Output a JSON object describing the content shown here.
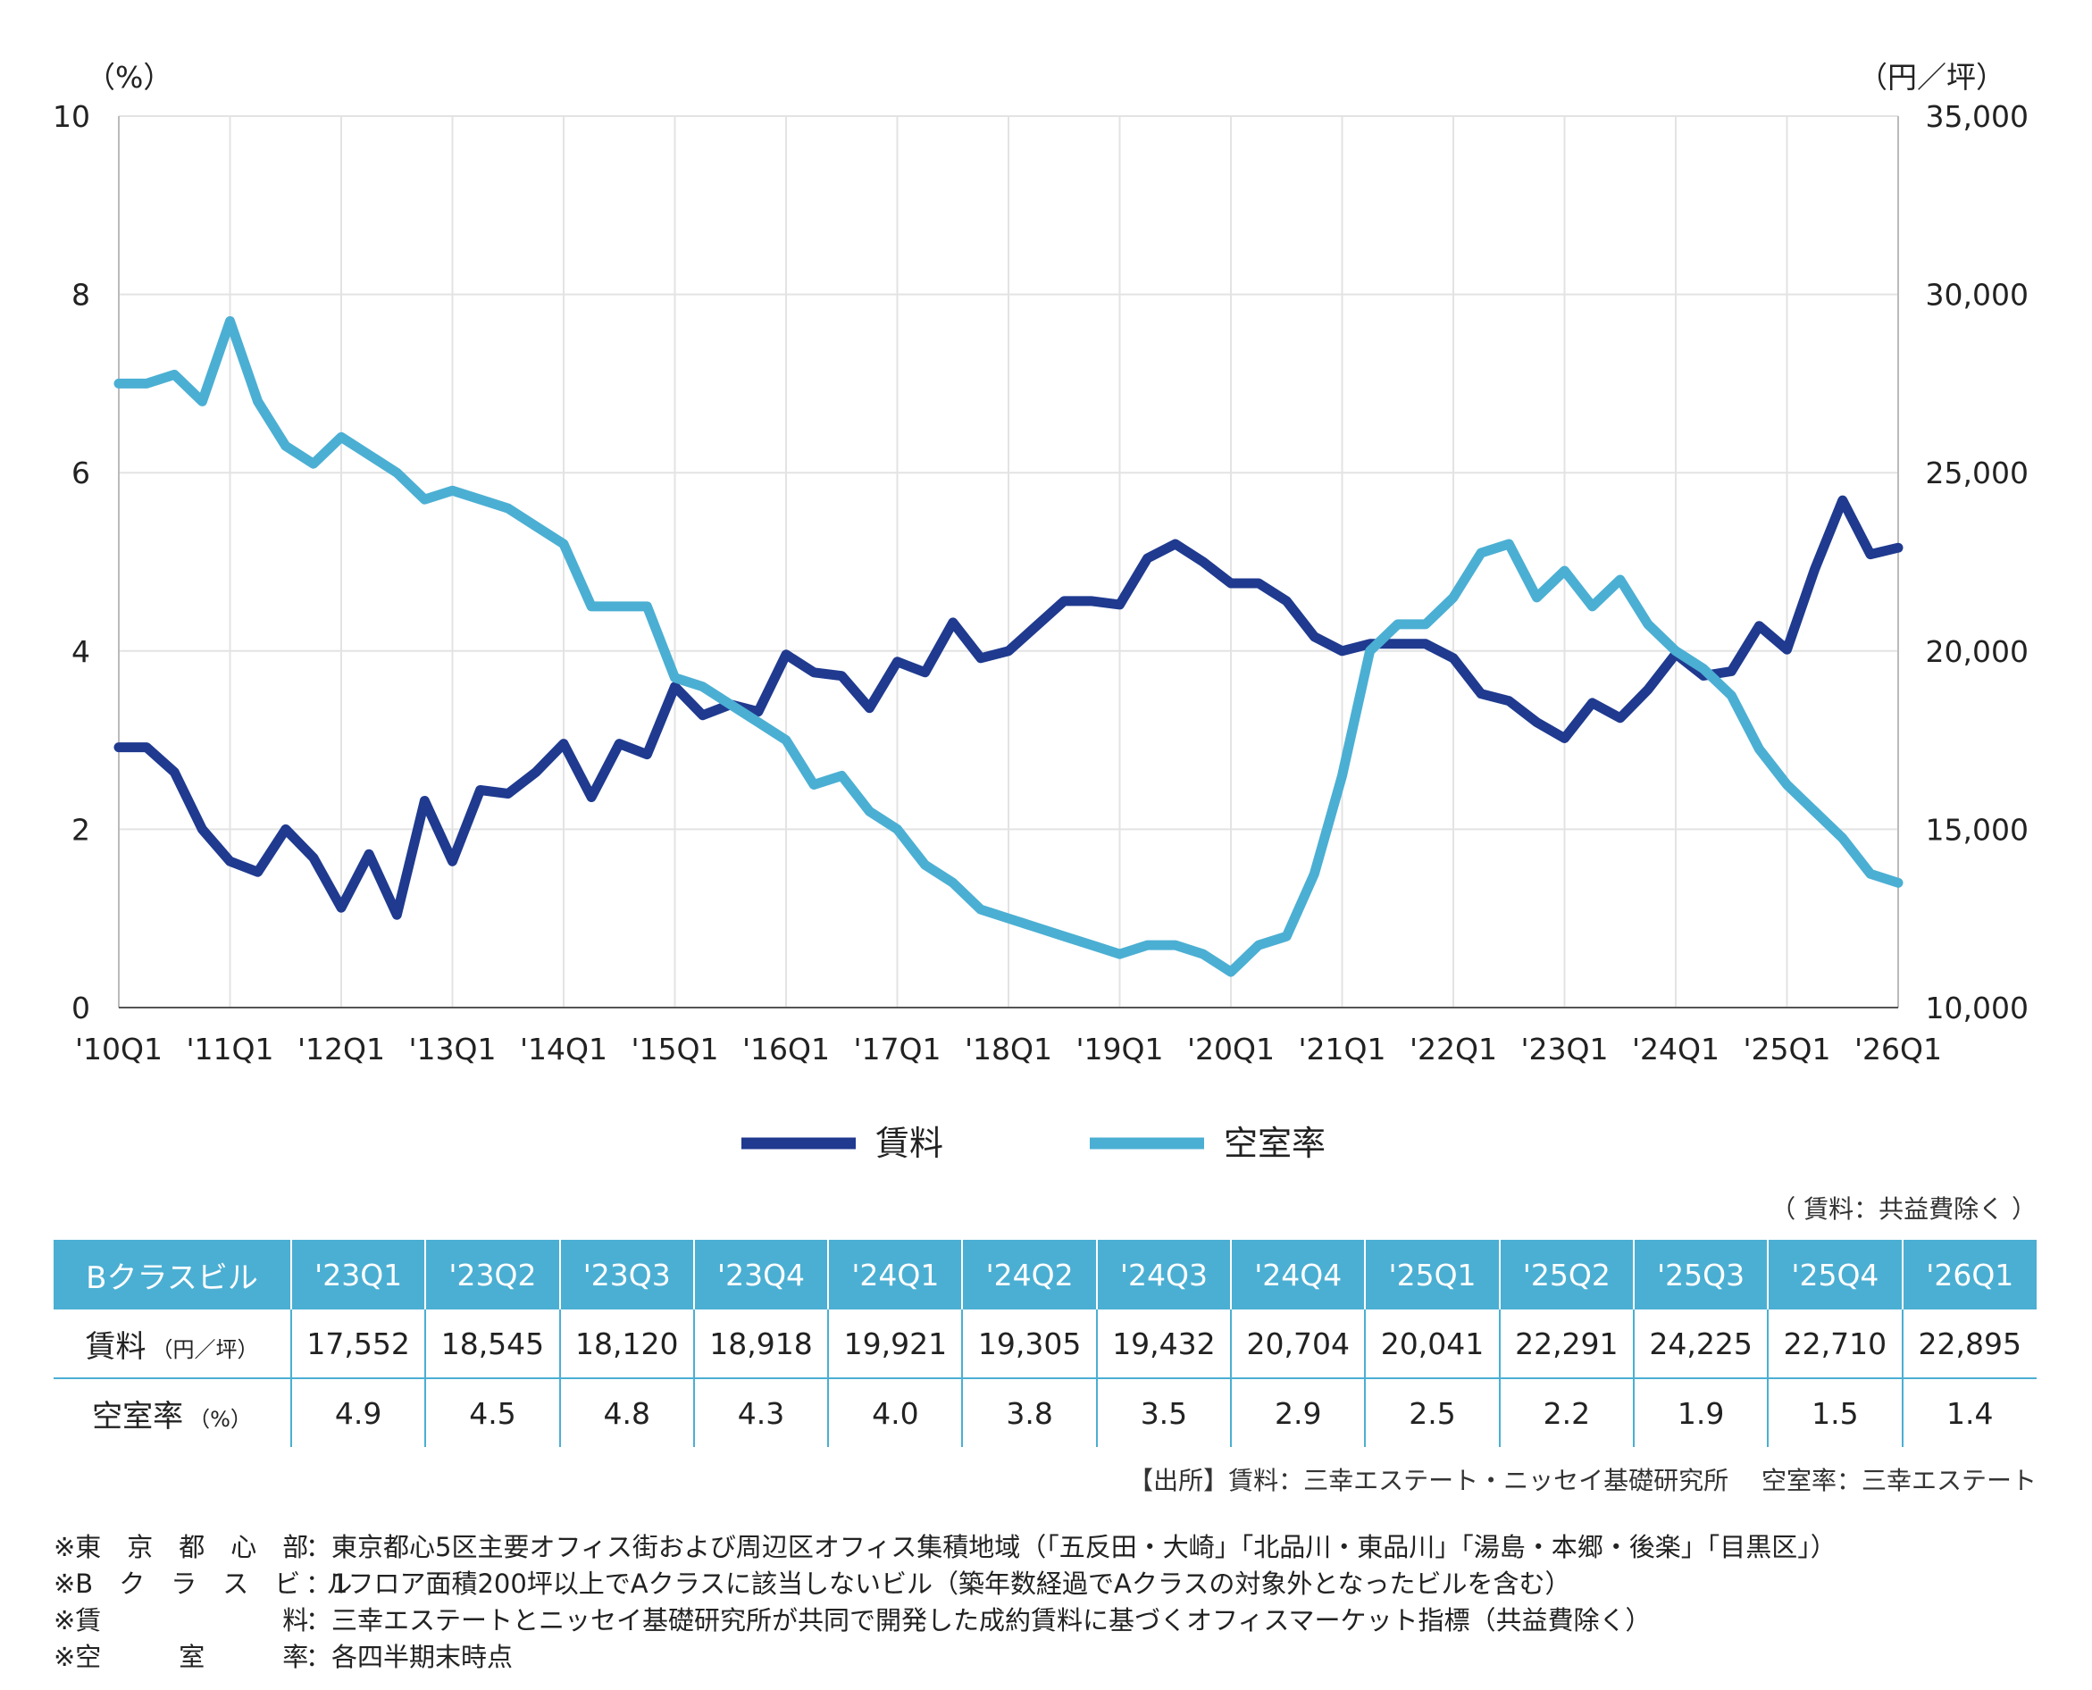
{
  "chart_data": {
    "type": "line",
    "left_axis_unit": "（%）",
    "right_axis_unit": "（円／坪）",
    "left_ylim": [
      0,
      10
    ],
    "right_ylim": [
      10000,
      35000
    ],
    "left_ticks": [
      "0",
      "2",
      "4",
      "6",
      "8",
      "10"
    ],
    "right_ticks": [
      "10,000",
      "15,000",
      "20,000",
      "25,000",
      "30,000",
      "35,000"
    ],
    "x_tick_labels": [
      "'10Q1",
      "'11Q1",
      "'12Q1",
      "'13Q1",
      "'14Q1",
      "'15Q1",
      "'16Q1",
      "'17Q1",
      "'18Q1",
      "'19Q1",
      "'20Q1",
      "'21Q1",
      "'22Q1",
      "'23Q1",
      "'24Q1",
      "'25Q1",
      "'26Q1"
    ],
    "series": [
      {
        "name": "賃料",
        "axis": "right",
        "color": "#1f3a8f",
        "values": [
          17300,
          17300,
          16600,
          15000,
          14100,
          13800,
          15000,
          14200,
          12800,
          14300,
          12600,
          15800,
          14100,
          16100,
          16000,
          16600,
          17400,
          15900,
          17400,
          17100,
          19000,
          18200,
          18500,
          18300,
          19900,
          19400,
          19300,
          18400,
          19700,
          19400,
          20800,
          19800,
          20000,
          20700,
          21400,
          21400,
          21300,
          22600,
          23000,
          22500,
          21900,
          21900,
          21400,
          20400,
          20000,
          20200,
          20200,
          20200,
          19800,
          18800,
          18600,
          18000,
          17552,
          18545,
          18120,
          18918,
          19921,
          19305,
          19432,
          20704,
          20041,
          22291,
          24225,
          22710,
          22895
        ]
      },
      {
        "name": "空室率",
        "axis": "left",
        "color": "#4bafd3",
        "values": [
          7.0,
          7.0,
          7.1,
          6.8,
          7.7,
          6.8,
          6.3,
          6.1,
          6.4,
          6.2,
          6.0,
          5.7,
          5.8,
          5.7,
          5.6,
          5.4,
          5.2,
          4.5,
          4.5,
          4.5,
          3.7,
          3.6,
          3.4,
          3.2,
          3.0,
          2.5,
          2.6,
          2.2,
          2.0,
          1.6,
          1.4,
          1.1,
          1.0,
          0.9,
          0.8,
          0.7,
          0.6,
          0.7,
          0.7,
          0.6,
          0.4,
          0.7,
          0.8,
          1.5,
          2.6,
          4.0,
          4.3,
          4.3,
          4.6,
          5.1,
          5.2,
          4.6,
          4.9,
          4.5,
          4.8,
          4.3,
          4.0,
          3.8,
          3.5,
          2.9,
          2.5,
          2.2,
          1.9,
          1.5,
          1.4
        ]
      }
    ],
    "legend": [
      "賃料",
      "空室率"
    ],
    "legend_position": "bottom-center"
  },
  "unit_note": "（ 賃料：共益費除く ）",
  "table": {
    "row_header": "Bクラスビル",
    "columns": [
      "'23Q1",
      "'23Q2",
      "'23Q3",
      "'23Q4",
      "'24Q1",
      "'24Q2",
      "'24Q3",
      "'24Q4",
      "'25Q1",
      "'25Q2",
      "'25Q3",
      "'25Q4",
      "'26Q1"
    ],
    "rent_label": "賃料",
    "rent_unit": "（円／坪）",
    "rent": [
      "17,552",
      "18,545",
      "18,120",
      "18,918",
      "19,921",
      "19,305",
      "19,432",
      "20,704",
      "20,041",
      "22,291",
      "24,225",
      "22,710",
      "22,895"
    ],
    "vacancy_label": "空室率",
    "vacancy_unit": "（%）",
    "vacancy": [
      "4.9",
      "4.5",
      "4.8",
      "4.3",
      "4.0",
      "3.8",
      "3.5",
      "2.9",
      "2.5",
      "2.2",
      "1.9",
      "1.5",
      "1.4"
    ]
  },
  "source_note": "【出所】賃料：三幸エステート・ニッセイ基礎研究所　 空室率：三幸エステート",
  "footnotes": [
    {
      "term": "※東　京　都　心　部",
      "text": "：東京都心5区主要オフィス街および周辺区オフィス集積地域（「五反田・大崎」「北品川・東品川」「湯島・本郷・後楽」「目黒区」）"
    },
    {
      "term": "※B　ク　ラ　ス　ビ　ル",
      "text": "：1フロア面積200坪以上でAクラスに該当しないビル（築年数経過でAクラスの対象外となったビルを含む）"
    },
    {
      "term": "※賃　　　　　　　料",
      "text": "：三幸エステートとニッセイ基礎研究所が共同で開発した成約賃料に基づくオフィスマーケット指標（共益費除く）"
    },
    {
      "term": "※空　　　室　　　率",
      "text": "：各四半期末時点"
    }
  ]
}
